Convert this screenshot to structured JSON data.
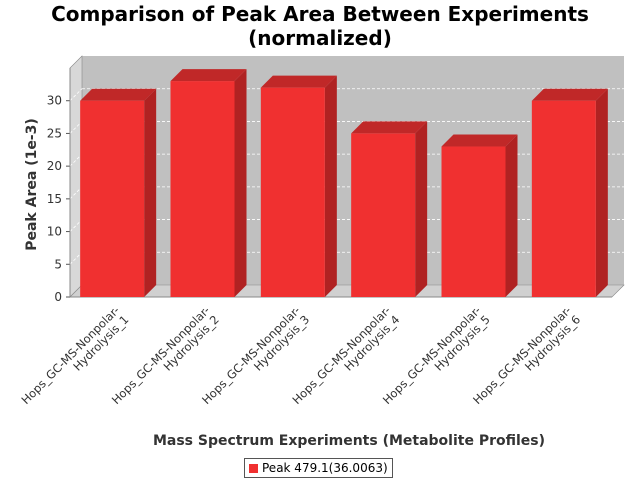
{
  "chart_data": {
    "type": "bar",
    "title_lines": [
      "Comparison of Peak Area Between Experiments",
      "(normalized)"
    ],
    "xlabel": "Mass Spectrum Experiments (Metabolite Profiles)",
    "ylabel": "Peak Area (1e-3)",
    "categories": [
      [
        "Hops_GC-MS-Nonpolar-",
        "Hydrolysis_1"
      ],
      [
        "Hops_GC-MS-Nonpolar-",
        "Hydrolysis_2"
      ],
      [
        "Hops_GC-MS-Nonpolar-",
        "Hydrolysis_3"
      ],
      [
        "Hops_GC-MS-Nonpolar-",
        "Hydrolysis_4"
      ],
      [
        "Hops_GC-MS-Nonpolar-",
        "Hydrolysis_5"
      ],
      [
        "Hops_GC-MS-Nonpolar-",
        "Hydrolysis_6"
      ]
    ],
    "series": [
      {
        "name": "Peak 479.1(36.0063)",
        "values": [
          30,
          33,
          32,
          25,
          23,
          30
        ]
      }
    ],
    "ylim": [
      0,
      35
    ],
    "yticks": [
      0,
      5,
      10,
      15,
      20,
      25,
      30
    ],
    "grid": true,
    "legend_position": "bottom-center",
    "colors": {
      "bar": "#f03030",
      "bar_top": "#c02828",
      "bar_side": "#b02222",
      "plot_bg": "#c0c0c0",
      "plot_floor": "#d0d0d0"
    }
  }
}
